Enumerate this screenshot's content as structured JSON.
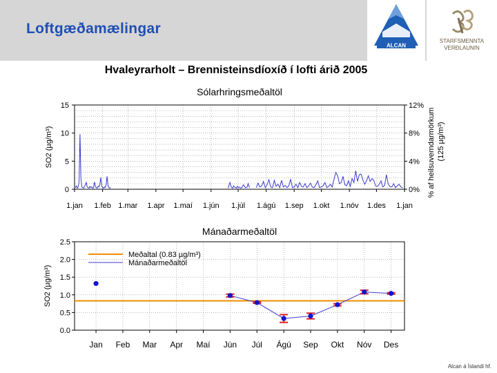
{
  "slide": {
    "title": "Loftgæðamælingar",
    "footer": "Alcan á Íslandi hf.",
    "logos": {
      "alcan": "ALCAN",
      "starf_line1": "STARFSMENNTA",
      "starf_line2": "VERÐLAUNIN"
    }
  },
  "figure_title": "Hvaleyrarholt – Brennisteinsdíoxíð í lofti árið 2005",
  "colors": {
    "header": "#d6d6d6",
    "title": "#1f4fb4",
    "series": "#3b3bcf",
    "average": "#f08c00",
    "error": "#e02020",
    "marker": "#1414d0"
  },
  "chart_data": [
    {
      "type": "line",
      "title": "Sólarhringsmeðaltöl",
      "xlabel": "",
      "ylabel": "SO2 (µg/m³)",
      "ylim": [
        0,
        15
      ],
      "yticks": [
        0,
        5,
        10,
        15
      ],
      "right_axis": {
        "label": "% af heilsuverndarmörkum",
        "sublabel": "(125 µg/m³)",
        "ticks": [
          "0%",
          "4%",
          "8%",
          "12%"
        ]
      },
      "xlim": [
        0,
        365
      ],
      "x_tick_positions": [
        0,
        31,
        59,
        90,
        120,
        151,
        181,
        212,
        243,
        273,
        304,
        334,
        365
      ],
      "x_tick_labels": [
        "1.jan",
        "1.feb",
        "1.mar",
        "1.apr",
        "1.maí",
        "1.jún",
        "1.júl",
        "1.ágú",
        "1.sep",
        "1.okt",
        "1.nóv",
        "1.des",
        "1.jan"
      ],
      "segments": [
        {
          "x": [
            1,
            2,
            3,
            4,
            5,
            6,
            7,
            8,
            9,
            10,
            11,
            12,
            13,
            14,
            15,
            16,
            17,
            18,
            19,
            20,
            21,
            22,
            23,
            24,
            25,
            26,
            27,
            28,
            29,
            30,
            31,
            32,
            33,
            34,
            35,
            36,
            37,
            38,
            39,
            40
          ],
          "y": [
            0.3,
            0.6,
            0.2,
            0.4,
            1.2,
            9.8,
            2.0,
            0.4,
            0.3,
            0.2,
            0.5,
            0.8,
            1.2,
            0.4,
            0.3,
            0.2,
            0.5,
            0.3,
            0.4,
            0.2,
            0.3,
            1.3,
            0.5,
            0.3,
            0.2,
            0.5,
            0.4,
            0.9,
            2.1,
            0.6,
            0.3,
            0.2,
            0.4,
            0.3,
            0.8,
            2.3,
            0.6,
            0.3,
            0.2,
            0.3
          ]
        },
        {
          "x": [
            170,
            171,
            172,
            173,
            174,
            175,
            176,
            177,
            178,
            179,
            180,
            181,
            182,
            183,
            184,
            185,
            186,
            187,
            188,
            189,
            190,
            191,
            192,
            193,
            194
          ],
          "y": [
            0.2,
            0.8,
            1.2,
            0.5,
            0.3,
            0.2,
            0.6,
            0.4,
            0.3,
            0.2,
            0.5,
            0.3,
            0.4,
            0.3,
            0.2,
            0.3,
            0.6,
            0.8,
            0.5,
            0.3,
            0.3,
            0.4,
            1.0,
            0.5,
            0.3
          ]
        },
        {
          "x": [
            201,
            203,
            205,
            207,
            209,
            211,
            213,
            215,
            217,
            219,
            221,
            223,
            225,
            227,
            229,
            231,
            233,
            235,
            237,
            239,
            241,
            243,
            245,
            247,
            249,
            251,
            253,
            255,
            257,
            259,
            261,
            263,
            265,
            267,
            269,
            271,
            273,
            275,
            277,
            279,
            281,
            283,
            285,
            287,
            289,
            291,
            293,
            295,
            297,
            299,
            301,
            303,
            305,
            307,
            309,
            311,
            313,
            315,
            317,
            319,
            321,
            323,
            325,
            327,
            329,
            331,
            333,
            335,
            337,
            339,
            341,
            343,
            345,
            347,
            349,
            351,
            353,
            355,
            357,
            359,
            361,
            363
          ],
          "y": [
            0.3,
            1.1,
            0.4,
            0.6,
            1.4,
            0.3,
            0.8,
            1.7,
            0.4,
            0.3,
            1.6,
            0.5,
            0.9,
            0.3,
            1.6,
            0.4,
            0.7,
            0.3,
            0.6,
            1.8,
            0.3,
            0.4,
            0.9,
            0.3,
            1.2,
            0.5,
            0.4,
            1.0,
            0.3,
            0.6,
            1.1,
            0.4,
            0.3,
            0.8,
            1.5,
            0.3,
            0.4,
            0.6,
            1.2,
            0.3,
            0.5,
            0.9,
            0.4,
            1.8,
            3.0,
            2.4,
            1.0,
            1.2,
            2.3,
            0.8,
            0.6,
            1.5,
            0.5,
            1.9,
            1.2,
            3.3,
            1.4,
            2.6,
            2.7,
            1.6,
            0.9,
            1.5,
            2.4,
            1.4,
            1.9,
            1.6,
            0.6,
            0.5,
            0.9,
            1.5,
            0.4,
            0.7,
            2.6,
            0.9,
            0.5,
            0.4,
            1.0,
            0.3,
            0.6,
            0.9,
            0.4,
            0.3
          ]
        }
      ]
    },
    {
      "type": "scatter",
      "title": "Mánaðarmeðaltöl",
      "xlabel": "",
      "ylabel": "SO2 (µg/m³)",
      "ylim": [
        0,
        2.5
      ],
      "yticks": [
        "0.0",
        "0.5",
        "1.0",
        "1.5",
        "2.0",
        "2.5"
      ],
      "categories": [
        "Jan",
        "Feb",
        "Mar",
        "Apr",
        "Maí",
        "Jún",
        "Júl",
        "Ágú",
        "Sep",
        "Okt",
        "Nóv",
        "Des"
      ],
      "average": {
        "label": "Meðaltal (0.83 µg/m³)",
        "value": 0.83
      },
      "series": [
        {
          "name": "Mánaðarmeðaltöl",
          "values": [
            1.32,
            null,
            null,
            null,
            null,
            0.98,
            0.78,
            0.33,
            0.4,
            0.72,
            1.08,
            1.04
          ],
          "error": [
            0,
            0,
            0,
            0,
            0,
            0.04,
            0.02,
            0.11,
            0.08,
            0.03,
            0.05,
            0.02
          ]
        }
      ],
      "legend_placement": "top-left"
    }
  ]
}
